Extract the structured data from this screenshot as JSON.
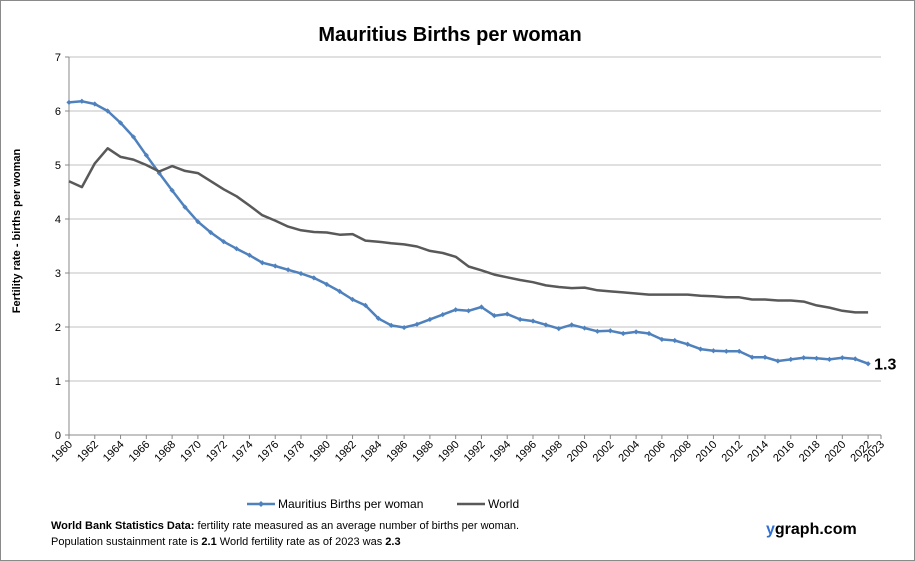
{
  "chart_data": {
    "type": "line",
    "title": "Mauritius Births per woman",
    "ylabel": "Fertility rate  - births per woman",
    "xlabel": "",
    "ylim": [
      0,
      7
    ],
    "yticks": [
      "0",
      "1",
      "2",
      "3",
      "4",
      "5",
      "6",
      "7"
    ],
    "xticks": [
      "1960",
      "1962",
      "1964",
      "1966",
      "1968",
      "1970",
      "1972",
      "1974",
      "1976",
      "1978",
      "1980",
      "1982",
      "1984",
      "1986",
      "1988",
      "1990",
      "1992",
      "1994",
      "1996",
      "1998",
      "2000",
      "2002",
      "2004",
      "2006",
      "2008",
      "2010",
      "2012",
      "2014",
      "2016",
      "2018",
      "2020",
      "2022",
      "2023"
    ],
    "x_years": [
      1960,
      1961,
      1962,
      1963,
      1964,
      1965,
      1966,
      1967,
      1968,
      1969,
      1970,
      1971,
      1972,
      1973,
      1974,
      1975,
      1976,
      1977,
      1978,
      1979,
      1980,
      1981,
      1982,
      1983,
      1984,
      1985,
      1986,
      1987,
      1988,
      1989,
      1990,
      1991,
      1992,
      1993,
      1994,
      1995,
      1996,
      1997,
      1998,
      1999,
      2000,
      2001,
      2002,
      2003,
      2004,
      2005,
      2006,
      2007,
      2008,
      2009,
      2010,
      2011,
      2012,
      2013,
      2014,
      2015,
      2016,
      2017,
      2018,
      2019,
      2020,
      2021,
      2022
    ],
    "grid": true,
    "legend_position": "bottom",
    "series": [
      {
        "name": "Mauritius Births per woman",
        "color": "#4f81bd",
        "marker": "diamond",
        "values": [
          6.16,
          6.18,
          6.13,
          6.0,
          5.78,
          5.52,
          5.18,
          4.85,
          4.53,
          4.22,
          3.95,
          3.75,
          3.58,
          3.45,
          3.33,
          3.19,
          3.13,
          3.06,
          2.99,
          2.91,
          2.79,
          2.66,
          2.51,
          2.4,
          2.16,
          2.03,
          1.99,
          2.05,
          2.14,
          2.23,
          2.32,
          2.3,
          2.37,
          2.21,
          2.24,
          2.14,
          2.11,
          2.04,
          1.97,
          2.04,
          1.98,
          1.92,
          1.93,
          1.88,
          1.91,
          1.88,
          1.77,
          1.75,
          1.68,
          1.59,
          1.56,
          1.55,
          1.55,
          1.44,
          1.44,
          1.37,
          1.4,
          1.43,
          1.42,
          1.4,
          1.43,
          1.41,
          1.32
        ]
      },
      {
        "name": "World",
        "color": "#595959",
        "marker": "none",
        "values": [
          4.7,
          4.59,
          5.03,
          5.31,
          5.15,
          5.1,
          5.0,
          4.88,
          4.98,
          4.89,
          4.85,
          4.7,
          4.55,
          4.42,
          4.25,
          4.07,
          3.97,
          3.86,
          3.79,
          3.76,
          3.75,
          3.71,
          3.72,
          3.6,
          3.58,
          3.55,
          3.53,
          3.49,
          3.41,
          3.37,
          3.3,
          3.12,
          3.05,
          2.97,
          2.92,
          2.87,
          2.83,
          2.77,
          2.74,
          2.72,
          2.73,
          2.68,
          2.66,
          2.64,
          2.62,
          2.6,
          2.6,
          2.6,
          2.6,
          2.58,
          2.57,
          2.55,
          2.55,
          2.51,
          2.51,
          2.49,
          2.49,
          2.47,
          2.4,
          2.36,
          2.3,
          2.27,
          2.27
        ]
      }
    ],
    "annotations": [
      {
        "text": "1.3",
        "series": "Mauritius Births per woman",
        "at_year": 2022
      }
    ]
  },
  "footer": {
    "line1_bold": "World Bank Statistics Data:",
    "line1_rest": " fertility rate measured as an average number  of births per woman.",
    "line2_a": "Population sustainment rate is ",
    "line2_b": "2.1",
    "line2_c": "    World fertility rate as of 2023 was ",
    "line2_d": "2.3"
  },
  "brand": {
    "y": "y",
    "rest": "graph.com"
  }
}
